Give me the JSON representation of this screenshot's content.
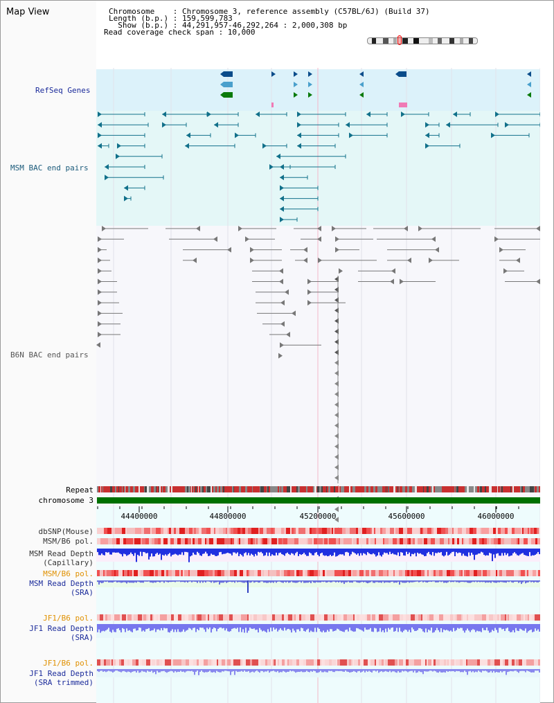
{
  "view_title": "Map View",
  "info": {
    "line1": "Chromosome    : Chromosome 3, reference assembly (C57BL/6J) (Build 37)",
    "line2": "Length (b.p.) : 159,599,783",
    "line3": "  Show (b.p.) : 44,291,957-46,292,264 : 2,000,308 bp",
    "line4": "Read coverage check span : 10,000"
  },
  "tracks": {
    "refseq": "RefSeq Genes",
    "msm_bac": "MSM BAC end pairs",
    "b6n_bac": "B6N BAC end pairs",
    "repeat": "Repeat",
    "chromosome": "chromosome 3",
    "dbsnp": "dbSNP(Mouse)",
    "msm_b6_pol": "MSM/B6 pol.",
    "msm_depth_cap_1": "MSM Read Depth",
    "msm_depth_cap_2": "(Capillary)",
    "msm_b6_pol_2": "MSM/B6 pol.",
    "msm_depth_sra_1": "MSM Read Depth",
    "msm_depth_sra_2": "(SRA)",
    "jf1_b6_pol": "JF1/B6 pol.",
    "jf1_depth_1": "JF1 Read Depth",
    "jf1_depth_2": "(SRA)",
    "jf1_b6_pol_2": "JF1/B6 pol.",
    "jf1_trim_1": "JF1 Read Depth",
    "jf1_trim_2": "(SRA trimmed)"
  },
  "axis_ticks": [
    "44400000",
    "44800000",
    "45200000",
    "45600000",
    "46000000"
  ],
  "colors": {
    "refseq_bg": "#dcf2fa",
    "msm_bg": "#e4f7f7",
    "b6n_bg": "#f7f7fb",
    "gene_dark": "#0a4c8a",
    "gene_mid": "#4aa0cc",
    "gene_green": "#0a7a0a",
    "msm_feature": "#11708a",
    "b6n_feature": "#777777",
    "chromosome_bar": "#007000",
    "label_blue": "#1a2a9a",
    "label_orange": "#e09000",
    "label_dark": "#333333",
    "depth_blue": "#2030e0",
    "depth_lavender": "#7777ee"
  }
}
